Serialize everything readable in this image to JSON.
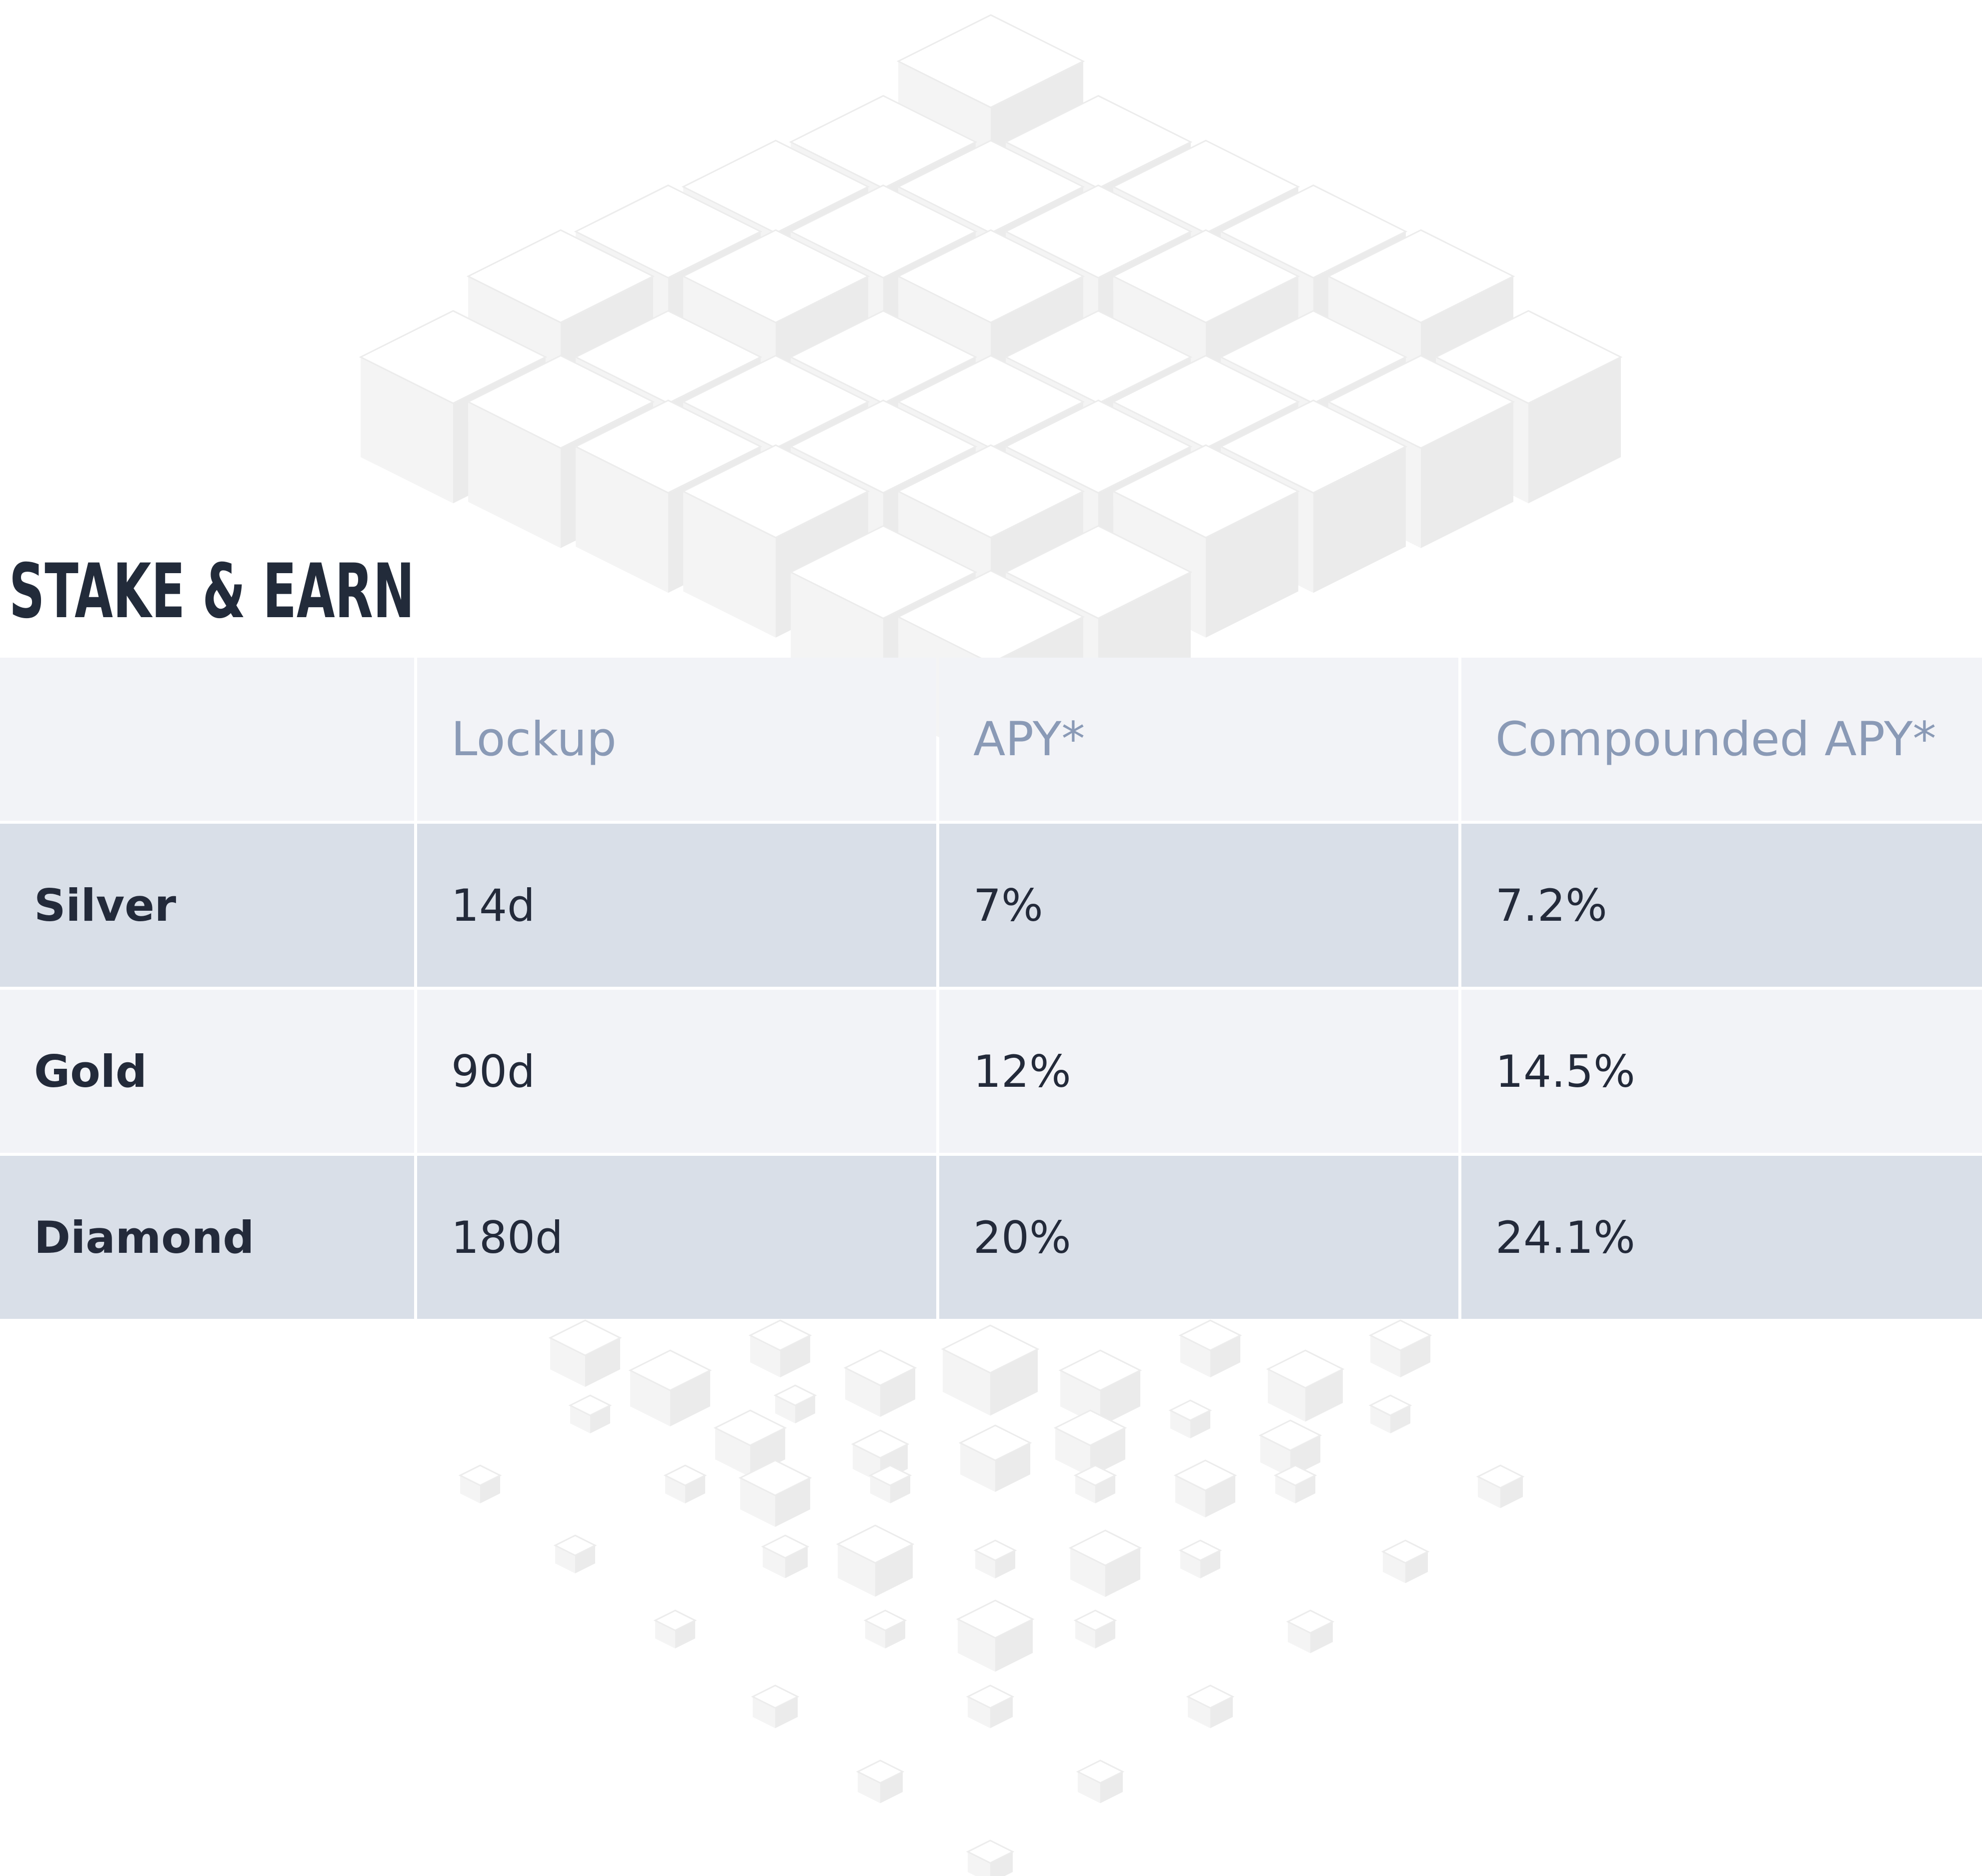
{
  "page": {
    "title": "STAKE & EARN"
  },
  "table": {
    "headers": [
      "",
      "Lockup",
      "APY*",
      "Compounded APY*"
    ],
    "rows": [
      {
        "tier": "Silver",
        "lockup": "14d",
        "apy": "7%",
        "compounded_apy": "7.2%"
      },
      {
        "tier": "Gold",
        "lockup": "90d",
        "apy": "12%",
        "compounded_apy": "14.5%"
      },
      {
        "tier": "Diamond",
        "lockup": "180d",
        "apy": "20%",
        "compounded_apy": "24.1%"
      }
    ]
  },
  "colors": {
    "title": "#222b3a",
    "header_text": "#8a9ab6",
    "header_bg": "#f2f3f7",
    "row_dark_bg": "#d9dfe8",
    "row_light_bg": "#f2f3f7",
    "cell_text": "#232a3a"
  },
  "background_art": {
    "icon": "cube-grid-illustration"
  }
}
